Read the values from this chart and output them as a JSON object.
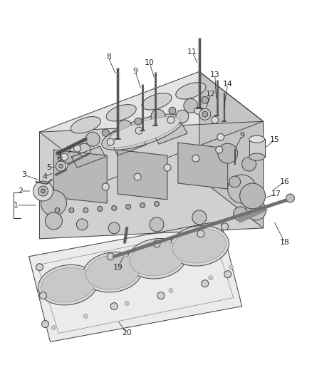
{
  "bg_color": "#ffffff",
  "line_color": "#404040",
  "text_color": "#2a2a2a",
  "fig_width": 4.38,
  "fig_height": 5.33,
  "dpi": 100
}
